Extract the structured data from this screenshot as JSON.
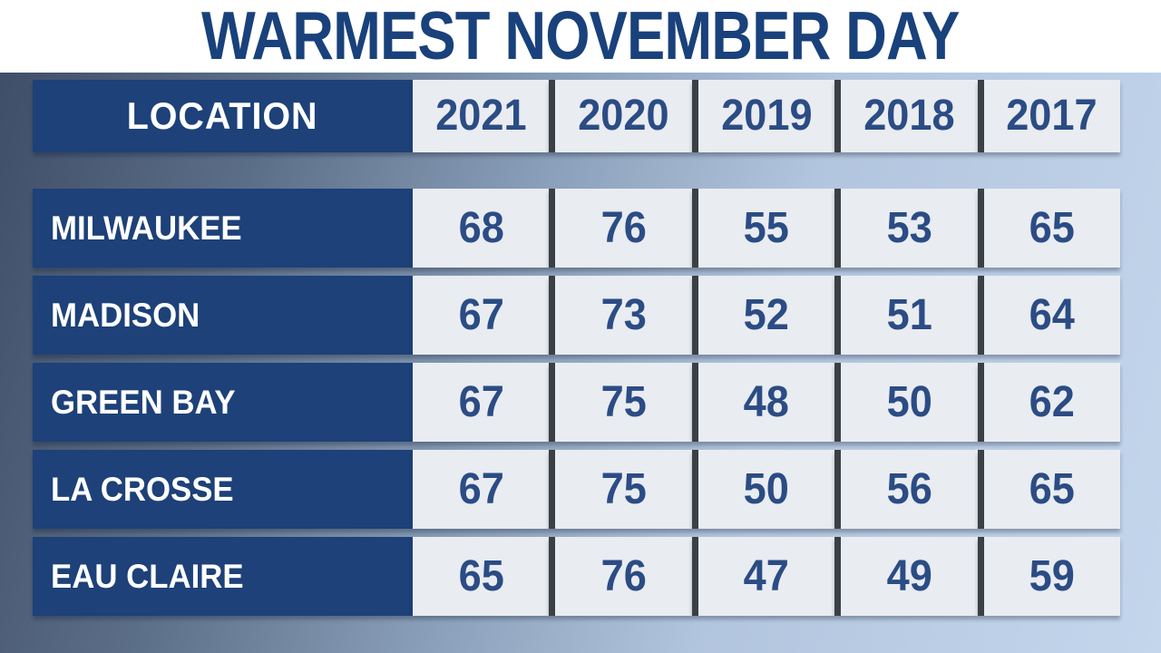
{
  "title": "WARMEST NOVEMBER DAY",
  "table": {
    "header": {
      "location": "LOCATION",
      "years": [
        "2021",
        "2020",
        "2019",
        "2018",
        "2017"
      ]
    },
    "rows": [
      {
        "location": "MILWAUKEE",
        "values": [
          "68",
          "76",
          "55",
          "53",
          "65"
        ]
      },
      {
        "location": "MADISON",
        "values": [
          "67",
          "73",
          "52",
          "51",
          "64"
        ]
      },
      {
        "location": "GREEN BAY",
        "values": [
          "67",
          "75",
          "48",
          "50",
          "62"
        ]
      },
      {
        "location": "LA CROSSE",
        "values": [
          "67",
          "75",
          "50",
          "56",
          "65"
        ]
      },
      {
        "location": "EAU CLAIRE",
        "values": [
          "65",
          "76",
          "47",
          "49",
          "59"
        ]
      }
    ]
  },
  "colors": {
    "title_text": "#19417b",
    "navy_cell": "#1d4178",
    "light_cell": "#e9ecf1",
    "value_text": "#2b4c84",
    "divider": "#3b4045",
    "background_gradient_start": "#3e4c66",
    "background_gradient_end": "#c3d6ec",
    "title_band": "#ffffff"
  },
  "chart_data": {
    "type": "table",
    "title": "WARMEST NOVEMBER DAY",
    "columns": [
      "LOCATION",
      "2021",
      "2020",
      "2019",
      "2018",
      "2017"
    ],
    "rows": [
      [
        "MILWAUKEE",
        68,
        76,
        55,
        53,
        65
      ],
      [
        "MADISON",
        67,
        73,
        52,
        51,
        64
      ],
      [
        "GREEN BAY",
        67,
        75,
        48,
        50,
        62
      ],
      [
        "LA CROSSE",
        67,
        75,
        50,
        56,
        65
      ],
      [
        "EAU CLAIRE",
        65,
        76,
        47,
        49,
        59
      ]
    ]
  }
}
